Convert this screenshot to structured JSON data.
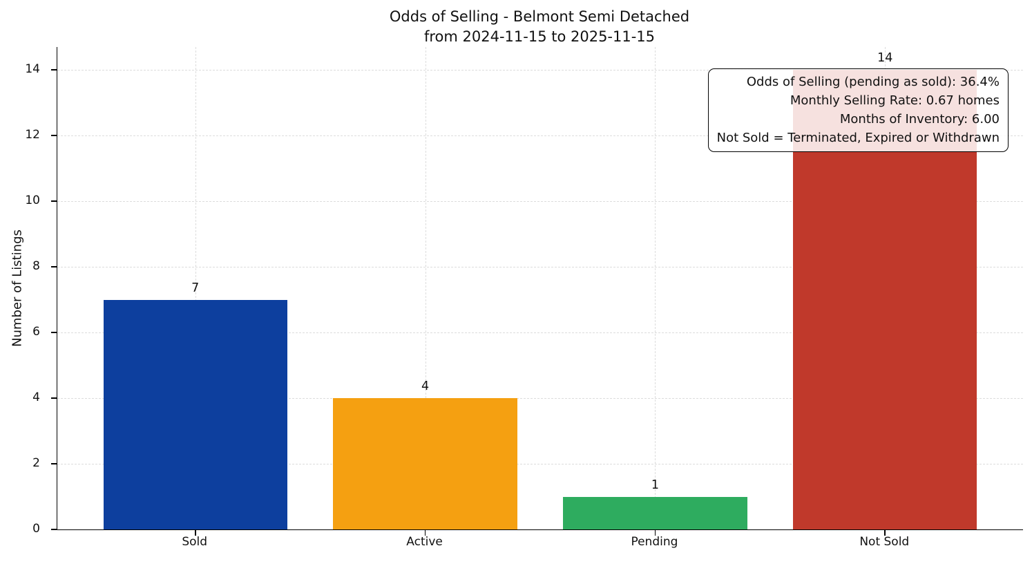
{
  "chart_data": {
    "type": "bar",
    "title": "Odds of Selling - Belmont Semi Detached\nfrom 2024-11-15 to 2025-11-15",
    "categories": [
      "Sold",
      "Active",
      "Pending",
      "Not Sold"
    ],
    "values": [
      7,
      4,
      1,
      14
    ],
    "bar_labels": [
      "7",
      "4",
      "1",
      "14"
    ],
    "colors": [
      "#0d3f9e",
      "#f5a011",
      "#2eac5f",
      "#c0392b"
    ],
    "xlabel": "",
    "ylabel": "Number of Listings",
    "ylim": [
      0,
      14.7
    ],
    "yticks": [
      0,
      2,
      4,
      6,
      8,
      10,
      12,
      14
    ],
    "grid": "dashed",
    "legend": "none",
    "annotation": {
      "lines": [
        "Odds of Selling (pending as sold): 36.4%",
        "Monthly Selling Rate: 0.67 homes",
        "Months of Inventory: 6.00",
        "Not Sold = Terminated, Expired or Withdrawn"
      ]
    }
  }
}
